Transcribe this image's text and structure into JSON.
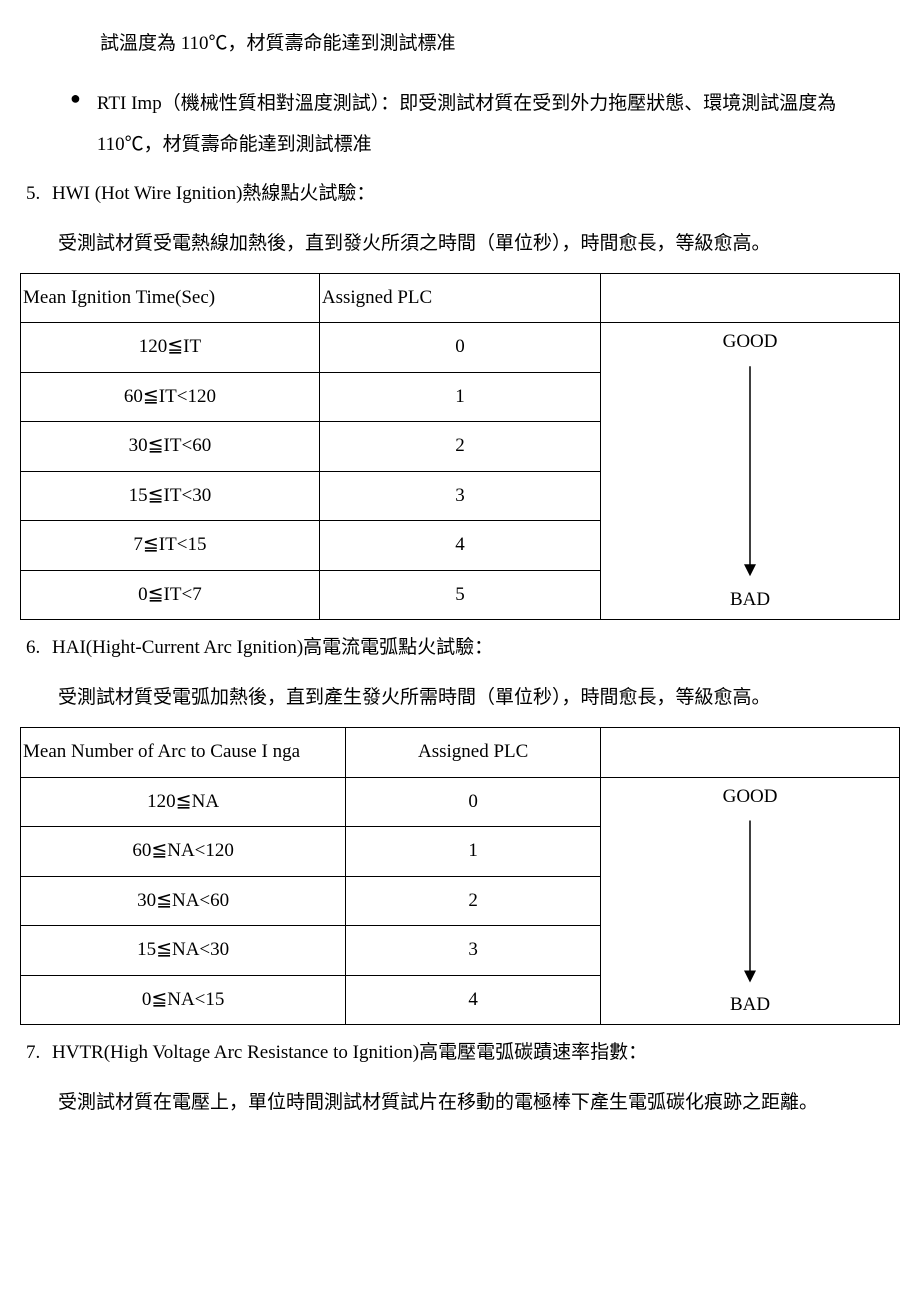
{
  "intro_line": "試溫度為 110℃，材質壽命能達到測試標准",
  "bullet_rti": "RTI   Imp（機械性質相對溫度測試）：即受測試材質在受到外力拖壓狀態、環境測試溫度為 110℃，材質壽命能達到測試標准",
  "section5": {
    "num": "5.",
    "title": "HWI (Hot Wire Ignition)熱線點火試驗：",
    "desc": "受測試材質受電熱線加熱後，直到發火所須之時間（單位秒），時間愈長，等級愈高。",
    "table": {
      "col_widths": [
        "34%",
        "32%",
        "34%"
      ],
      "header": [
        "Mean Ignition Time(Sec)",
        "Assigned PLC",
        ""
      ],
      "rows": [
        [
          "120≦IT",
          "0"
        ],
        [
          "60≦IT<120",
          "1"
        ],
        [
          "30≦IT<60",
          "2"
        ],
        [
          "15≦IT<30",
          "3"
        ],
        [
          "7≦IT<15",
          "4"
        ],
        [
          "0≦IT<7",
          "5"
        ]
      ],
      "good_label": "GOOD",
      "bad_label": "BAD",
      "arrow_color": "#000000"
    }
  },
  "section6": {
    "num": "6.",
    "title": "HAI(Hight-Current Arc Ignition)高電流電弧點火試驗：",
    "desc": "受測試材質受電弧加熱後，直到產生發火所需時間（單位秒），時間愈長，等級愈高。",
    "table": {
      "col_widths": [
        "37%",
        "29%",
        "34%"
      ],
      "header": [
        "Mean Number of Arc to Cause I nga",
        "Assigned PLC",
        ""
      ],
      "rows": [
        [
          "120≦NA",
          "0"
        ],
        [
          "60≦NA<120",
          "1"
        ],
        [
          "30≦NA<60",
          "2"
        ],
        [
          "15≦NA<30",
          "3"
        ],
        [
          "0≦NA<15",
          "4"
        ]
      ],
      "good_label": "GOOD",
      "bad_label": "BAD",
      "arrow_color": "#000000"
    }
  },
  "section7": {
    "num": "7.",
    "title": "HVTR(High Voltage Arc Resistance to Ignition)高電壓電弧碳蹟速率指數：",
    "desc": "受測試材質在電壓上，單位時間測試材質試片在移動的電極棒下產生電弧碳化痕跡之距離。"
  }
}
